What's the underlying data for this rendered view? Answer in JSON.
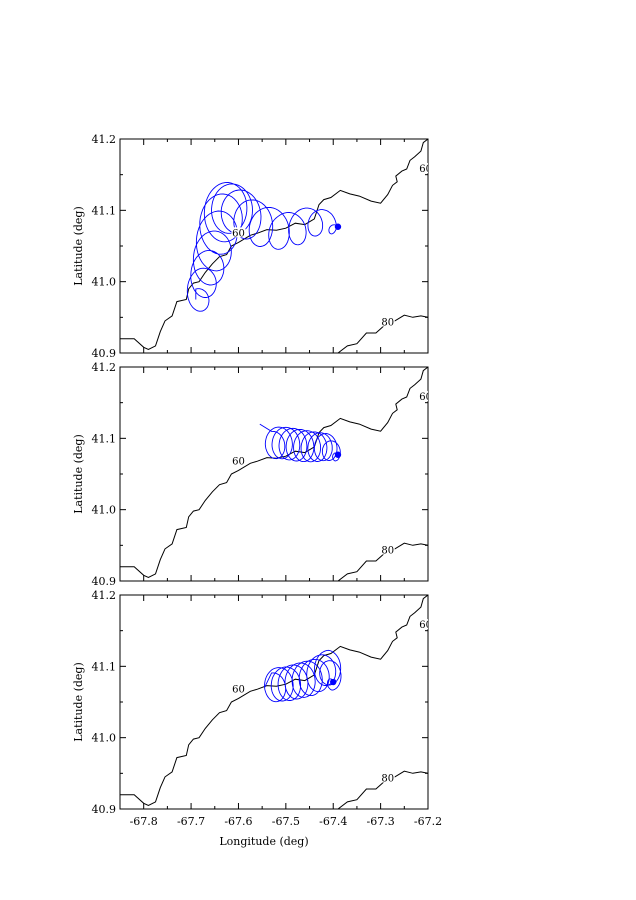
{
  "chart_data": [
    {
      "type": "line",
      "panel": "top",
      "xlim": [
        -67.85,
        -67.2
      ],
      "ylim": [
        40.9,
        41.2
      ],
      "ylabel": "Latitude (deg)",
      "xlabel": "",
      "y_ticks": [
        "40.9",
        "41.0",
        "41.1",
        "41.2"
      ],
      "x_ticks": [],
      "trajectory_color": "#0000ff",
      "end_point": {
        "x": -67.39,
        "y": 41.077
      },
      "trajectory": {
        "start": {
          "x": -67.69,
          "y": 40.975
        },
        "drift_points": [
          {
            "x": -67.69,
            "y": 40.975
          },
          {
            "x": -67.672,
            "y": 41.005
          },
          {
            "x": -67.655,
            "y": 41.04
          },
          {
            "x": -67.64,
            "y": 41.08
          },
          {
            "x": -67.625,
            "y": 41.105
          },
          {
            "x": -67.6,
            "y": 41.1
          },
          {
            "x": -67.56,
            "y": 41.08
          },
          {
            "x": -67.5,
            "y": 41.07
          },
          {
            "x": -67.44,
            "y": 41.085
          },
          {
            "x": -67.39,
            "y": 41.077
          }
        ],
        "loop_amplitude": [
          0.028,
          0.035,
          0.045,
          0.05,
          0.05,
          0.042,
          0.04,
          0.035,
          0.028,
          0.02
        ],
        "loops": 14
      },
      "contours": [
        {
          "label": "60",
          "label_point": {
            "x": -67.6,
            "y": 41.065
          },
          "points": [
            {
              "x": -67.85,
              "y": 40.92
            },
            {
              "x": -67.82,
              "y": 40.92
            },
            {
              "x": -67.8,
              "y": 40.908
            },
            {
              "x": -67.79,
              "y": 40.905
            },
            {
              "x": -67.775,
              "y": 40.91
            },
            {
              "x": -67.765,
              "y": 40.93
            },
            {
              "x": -67.755,
              "y": 40.945
            },
            {
              "x": -67.74,
              "y": 40.952
            },
            {
              "x": -67.73,
              "y": 40.972
            },
            {
              "x": -67.71,
              "y": 40.975
            },
            {
              "x": -67.705,
              "y": 40.99
            },
            {
              "x": -67.695,
              "y": 40.998
            },
            {
              "x": -67.683,
              "y": 41.0
            },
            {
              "x": -67.67,
              "y": 41.013
            },
            {
              "x": -67.655,
              "y": 41.025
            },
            {
              "x": -67.64,
              "y": 41.035
            },
            {
              "x": -67.625,
              "y": 41.038
            },
            {
              "x": -67.615,
              "y": 41.05
            },
            {
              "x": -67.6,
              "y": 41.055
            },
            {
              "x": -67.575,
              "y": 41.065
            },
            {
              "x": -67.56,
              "y": 41.068
            },
            {
              "x": -67.54,
              "y": 41.073
            },
            {
              "x": -67.52,
              "y": 41.072
            },
            {
              "x": -67.5,
              "y": 41.075
            },
            {
              "x": -67.48,
              "y": 41.082
            },
            {
              "x": -67.46,
              "y": 41.08
            },
            {
              "x": -67.44,
              "y": 41.088
            },
            {
              "x": -67.43,
              "y": 41.108
            },
            {
              "x": -67.42,
              "y": 41.115
            },
            {
              "x": -67.405,
              "y": 41.118
            },
            {
              "x": -67.385,
              "y": 41.128
            },
            {
              "x": -67.365,
              "y": 41.123
            },
            {
              "x": -67.345,
              "y": 41.12
            },
            {
              "x": -67.32,
              "y": 41.113
            },
            {
              "x": -67.3,
              "y": 41.11
            },
            {
              "x": -67.285,
              "y": 41.122
            },
            {
              "x": -67.275,
              "y": 41.135
            },
            {
              "x": -67.265,
              "y": 41.14
            },
            {
              "x": -67.268,
              "y": 41.148
            },
            {
              "x": -67.255,
              "y": 41.155
            },
            {
              "x": -67.245,
              "y": 41.158
            },
            {
              "x": -67.238,
              "y": 41.17
            },
            {
              "x": -67.228,
              "y": 41.175
            },
            {
              "x": -67.215,
              "y": 41.183
            },
            {
              "x": -67.21,
              "y": 41.195
            },
            {
              "x": -67.2,
              "y": 41.2
            }
          ]
        },
        {
          "label": "60",
          "label_point": {
            "x": -67.205,
            "y": 41.155
          },
          "points": []
        },
        {
          "label": "80",
          "label_point": {
            "x": -67.285,
            "y": 40.94
          },
          "points": [
            {
              "x": -67.39,
              "y": 40.9
            },
            {
              "x": -67.37,
              "y": 40.91
            },
            {
              "x": -67.35,
              "y": 40.913
            },
            {
              "x": -67.33,
              "y": 40.928
            },
            {
              "x": -67.31,
              "y": 40.928
            },
            {
              "x": -67.29,
              "y": 40.94
            },
            {
              "x": -67.27,
              "y": 40.945
            },
            {
              "x": -67.25,
              "y": 40.953
            },
            {
              "x": -67.232,
              "y": 40.95
            },
            {
              "x": -67.215,
              "y": 40.952
            },
            {
              "x": -67.2,
              "y": 40.95
            }
          ]
        }
      ]
    },
    {
      "type": "line",
      "panel": "middle",
      "xlim": [
        -67.85,
        -67.2
      ],
      "ylim": [
        40.9,
        41.2
      ],
      "ylabel": "Latitude  (deg)",
      "xlabel": "",
      "y_ticks": [
        "40.9",
        "41.0",
        "41.1",
        "41.2"
      ],
      "x_ticks": [],
      "trajectory_color": "#0000ff",
      "end_point": {
        "x": -67.39,
        "y": 41.077
      },
      "trajectory": {
        "start": {
          "x": -67.555,
          "y": 41.12
        },
        "drift_points": [
          {
            "x": -67.53,
            "y": 41.095
          },
          {
            "x": -67.5,
            "y": 41.093
          },
          {
            "x": -67.47,
            "y": 41.09
          },
          {
            "x": -67.44,
            "y": 41.088
          },
          {
            "x": -67.415,
            "y": 41.088
          },
          {
            "x": -67.39,
            "y": 41.077
          }
        ],
        "loop_amplitude": [
          0.028,
          0.03,
          0.03,
          0.028,
          0.025,
          0.012
        ],
        "loops": 10
      },
      "contours": [
        {
          "label": "60",
          "label_point": {
            "x": -67.6,
            "y": 41.065
          },
          "points": "same_as_top"
        },
        {
          "label": "60",
          "label_point": {
            "x": -67.205,
            "y": 41.155
          },
          "points": []
        },
        {
          "label": "80",
          "label_point": {
            "x": -67.285,
            "y": 40.94
          },
          "points": "same_as_top_80"
        }
      ]
    },
    {
      "type": "line",
      "panel": "bottom",
      "xlim": [
        -67.85,
        -67.2
      ],
      "ylim": [
        40.9,
        41.2
      ],
      "ylabel": "Latitude (deg)",
      "xlabel": "Longitude (deg)",
      "y_ticks": [
        "40.9",
        "41.0",
        "41.1",
        "41.2"
      ],
      "x_ticks": [
        "-67.8",
        "-67.7",
        "-67.6",
        "-67.5",
        "-67.4",
        "-67.3",
        "-67.2"
      ],
      "trajectory_color": "#0000ff",
      "end_point": {
        "x": -67.4,
        "y": 41.078
      },
      "trajectory": {
        "start": {
          "x": -67.545,
          "y": 41.07
        },
        "drift_points": [
          {
            "x": -67.53,
            "y": 41.075
          },
          {
            "x": -67.5,
            "y": 41.075
          },
          {
            "x": -67.47,
            "y": 41.08
          },
          {
            "x": -67.44,
            "y": 41.085
          },
          {
            "x": -67.41,
            "y": 41.1
          },
          {
            "x": -67.4,
            "y": 41.078
          }
        ],
        "loop_amplitude": [
          0.03,
          0.032,
          0.033,
          0.033,
          0.03,
          0.02
        ],
        "loops": 10
      },
      "contours": [
        {
          "label": "60",
          "label_point": {
            "x": -67.6,
            "y": 41.065
          },
          "points": "same_as_top"
        },
        {
          "label": "60",
          "label_point": {
            "x": -67.205,
            "y": 41.155
          },
          "points": []
        },
        {
          "label": "80",
          "label_point": {
            "x": -67.285,
            "y": 40.94
          },
          "points": "same_as_top_80"
        }
      ]
    }
  ]
}
